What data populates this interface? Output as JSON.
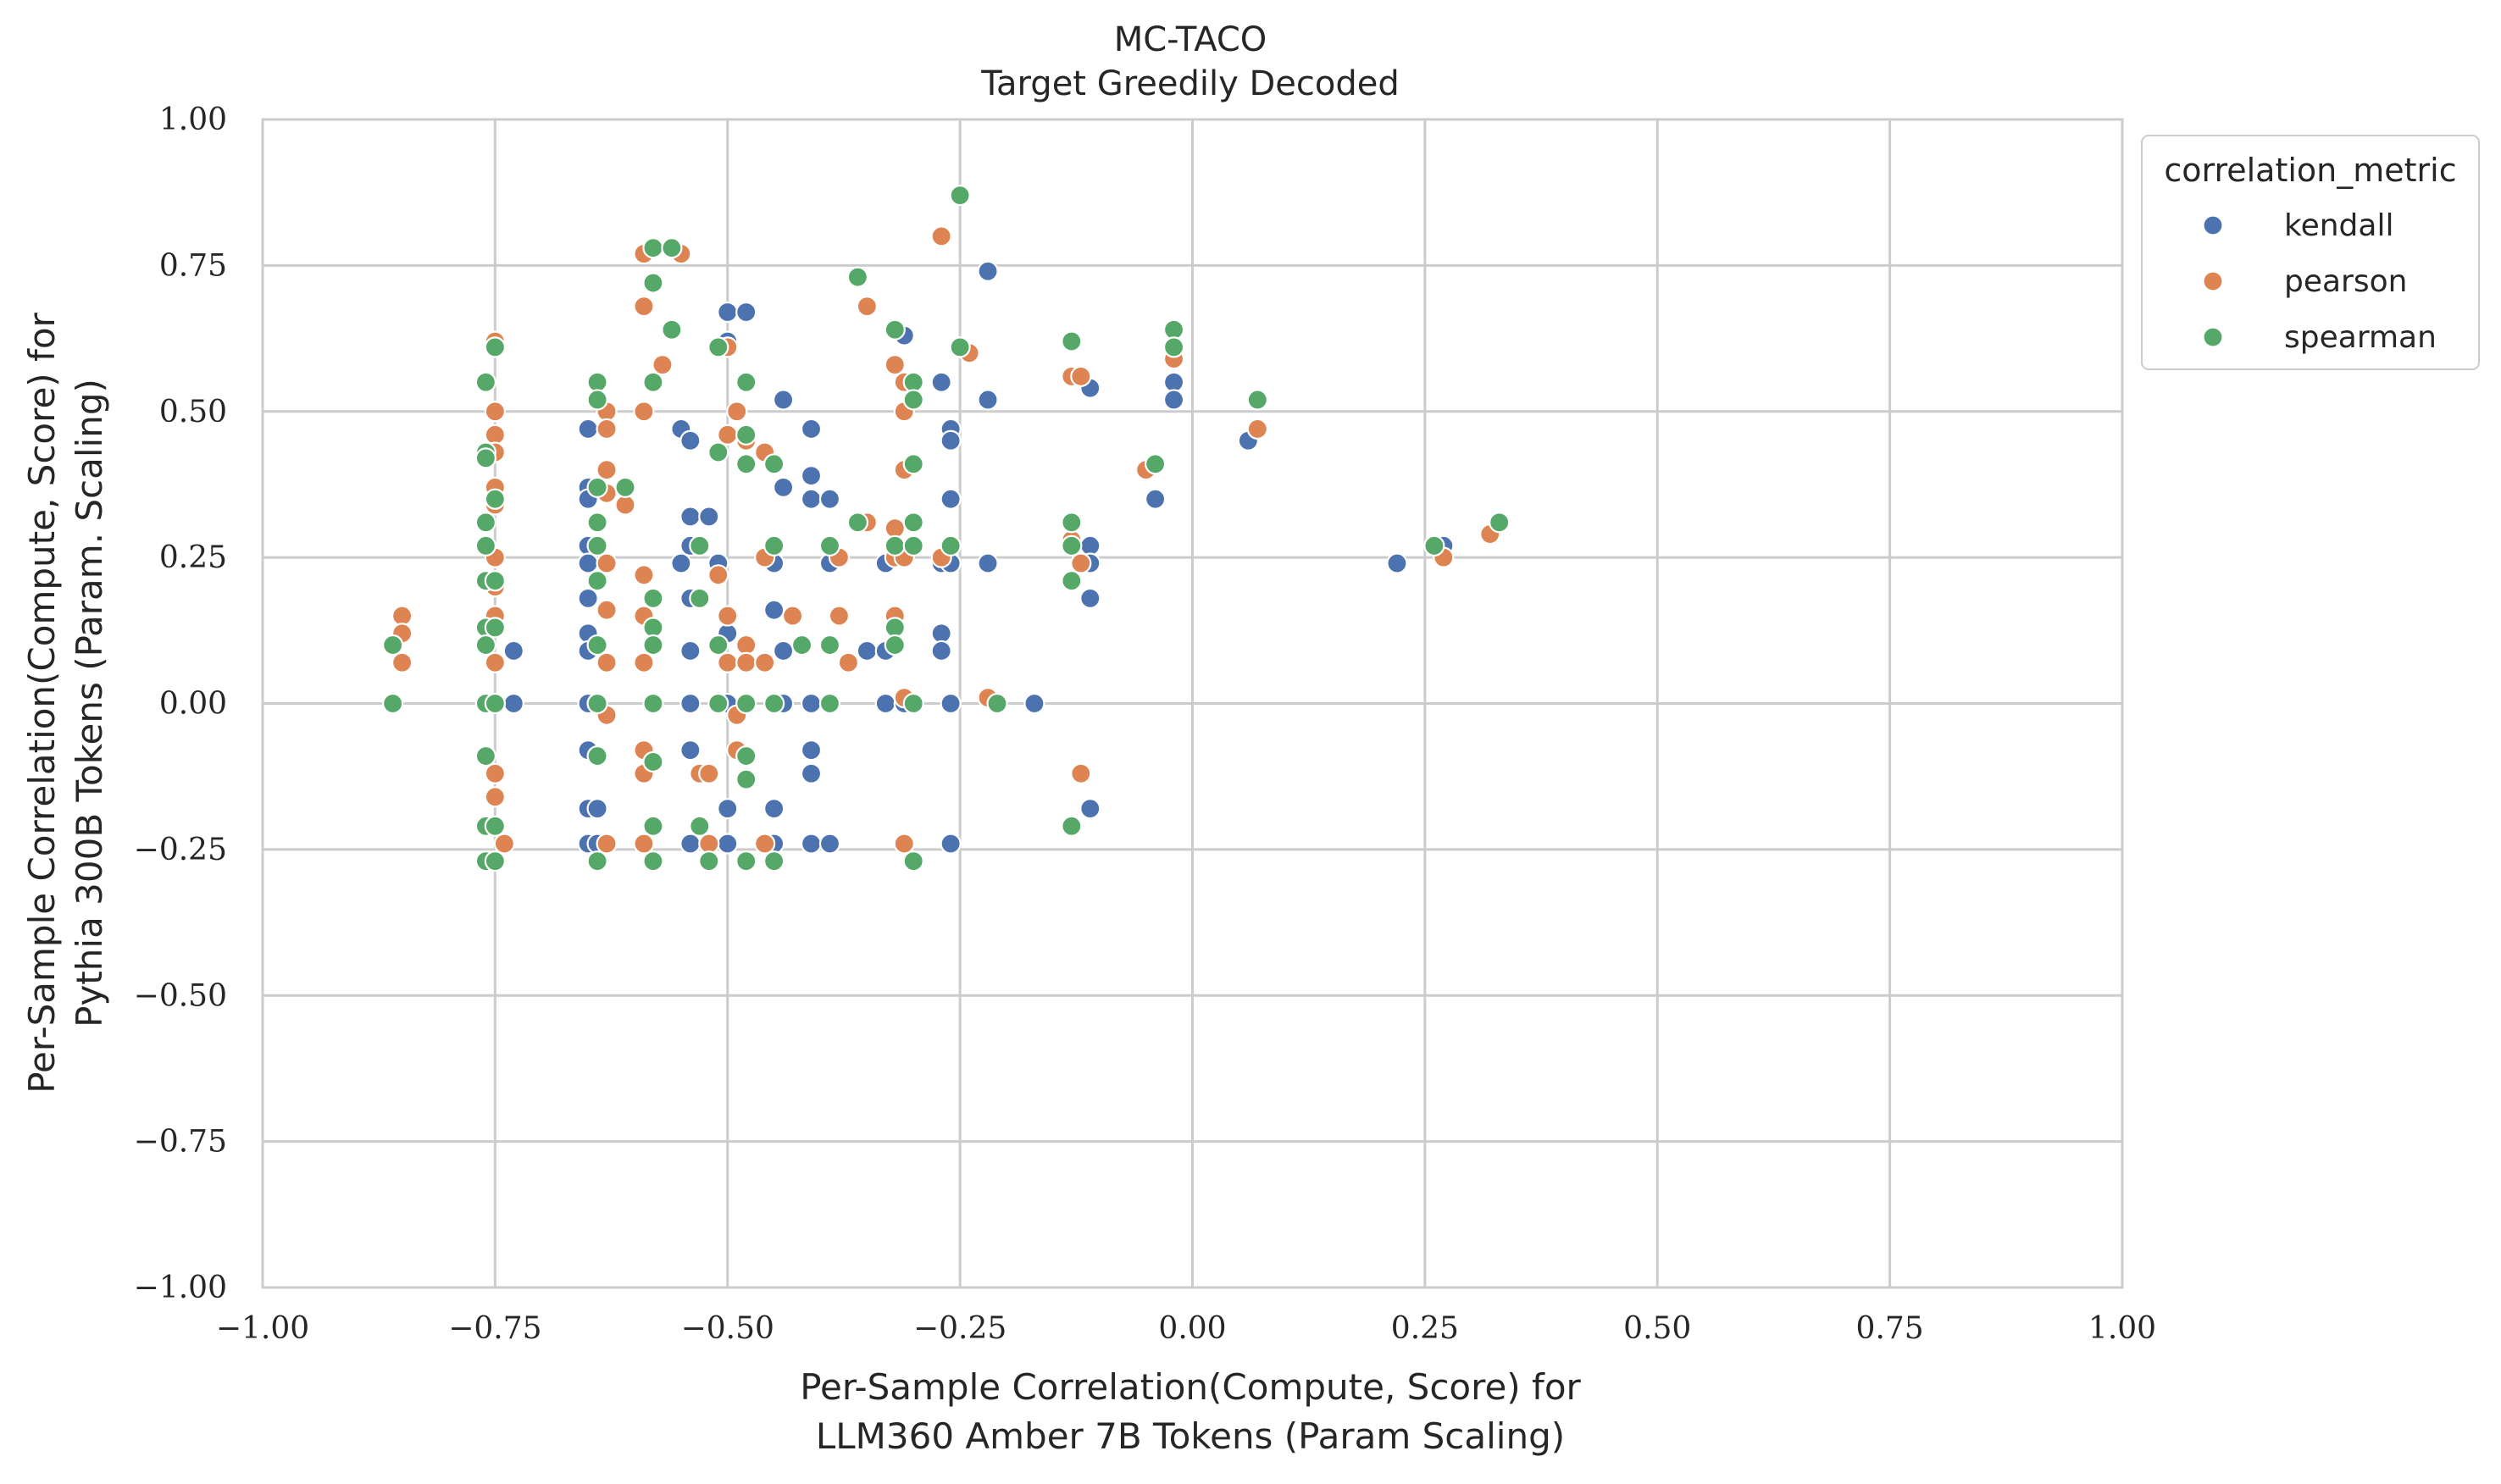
{
  "chart_data": {
    "type": "scatter",
    "title": "MC-TACO",
    "subtitle": "Target Greedily Decoded",
    "xlabel_lines": [
      "Per-Sample Correlation(Compute, Score) for",
      "LLM360 Amber 7B Tokens (Param Scaling)"
    ],
    "ylabel_lines": [
      "Per-Sample Correlation(Compute, Score) for",
      "Pythia 300B Tokens (Param. Scaling)"
    ],
    "xlim": [
      -1.0,
      1.0
    ],
    "ylim": [
      -1.0,
      1.0
    ],
    "xticks": [
      -1.0,
      -0.75,
      -0.5,
      -0.25,
      0.0,
      0.25,
      0.5,
      0.75,
      1.0
    ],
    "yticks": [
      -1.0,
      -0.75,
      -0.5,
      -0.25,
      0.0,
      0.25,
      0.5,
      0.75,
      1.0
    ],
    "xtick_labels": [
      "−1.00",
      "−0.75",
      "−0.50",
      "−0.25",
      "0.00",
      "0.25",
      "0.50",
      "0.75",
      "1.00"
    ],
    "ytick_labels": [
      "−1.00",
      "−0.75",
      "−0.50",
      "−0.25",
      "0.00",
      "0.25",
      "0.50",
      "0.75",
      "1.00"
    ],
    "grid": true,
    "legend": {
      "title": "correlation_metric",
      "placement": "outside-top-right"
    },
    "series": [
      {
        "name": "kendall",
        "color": "#4c72b0",
        "points": [
          [
            -0.73,
            0.09
          ],
          [
            -0.73,
            0.0
          ],
          [
            -0.65,
            0.47
          ],
          [
            -0.65,
            0.37
          ],
          [
            -0.65,
            0.35
          ],
          [
            -0.65,
            0.27
          ],
          [
            -0.65,
            0.24
          ],
          [
            -0.65,
            0.18
          ],
          [
            -0.65,
            0.12
          ],
          [
            -0.65,
            0.09
          ],
          [
            -0.65,
            0.0
          ],
          [
            -0.65,
            -0.08
          ],
          [
            -0.65,
            -0.18
          ],
          [
            -0.65,
            -0.24
          ],
          [
            -0.64,
            -0.18
          ],
          [
            -0.64,
            -0.24
          ],
          [
            -0.64,
            0.0
          ],
          [
            -0.55,
            0.47
          ],
          [
            -0.54,
            0.45
          ],
          [
            -0.54,
            0.32
          ],
          [
            -0.54,
            0.27
          ],
          [
            -0.55,
            0.24
          ],
          [
            -0.54,
            0.18
          ],
          [
            -0.54,
            0.09
          ],
          [
            -0.54,
            0.0
          ],
          [
            -0.54,
            -0.08
          ],
          [
            -0.54,
            -0.24
          ],
          [
            -0.52,
            0.32
          ],
          [
            -0.51,
            0.24
          ],
          [
            -0.5,
            0.67
          ],
          [
            -0.5,
            0.62
          ],
          [
            -0.48,
            0.67
          ],
          [
            -0.5,
            0.12
          ],
          [
            -0.5,
            0.0
          ],
          [
            -0.5,
            -0.18
          ],
          [
            -0.5,
            -0.24
          ],
          [
            -0.45,
            0.24
          ],
          [
            -0.45,
            0.16
          ],
          [
            -0.45,
            -0.18
          ],
          [
            -0.45,
            -0.24
          ],
          [
            -0.45,
            0.0
          ],
          [
            -0.44,
            0.52
          ],
          [
            -0.44,
            0.37
          ],
          [
            -0.44,
            0.09
          ],
          [
            -0.44,
            0.0
          ],
          [
            -0.41,
            0.47
          ],
          [
            -0.41,
            0.39
          ],
          [
            -0.41,
            0.35
          ],
          [
            -0.41,
            0.0
          ],
          [
            -0.41,
            -0.08
          ],
          [
            -0.41,
            -0.12
          ],
          [
            -0.41,
            -0.24
          ],
          [
            -0.39,
            0.35
          ],
          [
            -0.39,
            0.24
          ],
          [
            -0.39,
            0.0
          ],
          [
            -0.39,
            -0.24
          ],
          [
            -0.35,
            0.09
          ],
          [
            -0.33,
            0.09
          ],
          [
            -0.33,
            0.24
          ],
          [
            -0.33,
            0.0
          ],
          [
            -0.31,
            0.63
          ],
          [
            -0.31,
            0.0
          ],
          [
            -0.27,
            0.55
          ],
          [
            -0.27,
            0.24
          ],
          [
            -0.27,
            0.12
          ],
          [
            -0.27,
            0.09
          ],
          [
            -0.26,
            0.47
          ],
          [
            -0.26,
            0.45
          ],
          [
            -0.26,
            0.35
          ],
          [
            -0.26,
            0.24
          ],
          [
            -0.26,
            0.0
          ],
          [
            -0.26,
            -0.24
          ],
          [
            -0.22,
            0.74
          ],
          [
            -0.22,
            0.52
          ],
          [
            -0.22,
            0.24
          ],
          [
            -0.17,
            0.0
          ],
          [
            -0.11,
            0.54
          ],
          [
            -0.11,
            0.27
          ],
          [
            -0.11,
            0.24
          ],
          [
            -0.11,
            0.18
          ],
          [
            -0.11,
            -0.18
          ],
          [
            -0.02,
            0.55
          ],
          [
            -0.02,
            0.52
          ],
          [
            -0.04,
            0.35
          ],
          [
            0.06,
            0.45
          ],
          [
            0.22,
            0.24
          ],
          [
            0.27,
            0.27
          ]
        ]
      },
      {
        "name": "pearson",
        "color": "#dd8452",
        "points": [
          [
            -0.85,
            0.15
          ],
          [
            -0.85,
            0.12
          ],
          [
            -0.85,
            0.07
          ],
          [
            -0.75,
            0.62
          ],
          [
            -0.75,
            0.5
          ],
          [
            -0.75,
            0.46
          ],
          [
            -0.75,
            0.43
          ],
          [
            -0.75,
            0.37
          ],
          [
            -0.75,
            0.34
          ],
          [
            -0.75,
            0.25
          ],
          [
            -0.75,
            0.2
          ],
          [
            -0.75,
            0.15
          ],
          [
            -0.75,
            0.07
          ],
          [
            -0.75,
            0.0
          ],
          [
            -0.75,
            -0.12
          ],
          [
            -0.75,
            -0.16
          ],
          [
            -0.74,
            -0.24
          ],
          [
            -0.63,
            0.5
          ],
          [
            -0.63,
            0.47
          ],
          [
            -0.63,
            0.4
          ],
          [
            -0.63,
            0.36
          ],
          [
            -0.63,
            0.24
          ],
          [
            -0.63,
            0.16
          ],
          [
            -0.63,
            0.07
          ],
          [
            -0.63,
            -0.02
          ],
          [
            -0.63,
            -0.24
          ],
          [
            -0.61,
            0.34
          ],
          [
            -0.59,
            0.77
          ],
          [
            -0.59,
            0.68
          ],
          [
            -0.59,
            0.5
          ],
          [
            -0.59,
            0.22
          ],
          [
            -0.59,
            0.15
          ],
          [
            -0.59,
            0.07
          ],
          [
            -0.59,
            -0.08
          ],
          [
            -0.59,
            -0.12
          ],
          [
            -0.59,
            -0.24
          ],
          [
            -0.57,
            0.58
          ],
          [
            -0.55,
            0.77
          ],
          [
            -0.53,
            -0.12
          ],
          [
            -0.52,
            -0.12
          ],
          [
            -0.52,
            -0.24
          ],
          [
            -0.51,
            0.22
          ],
          [
            -0.5,
            0.61
          ],
          [
            -0.5,
            0.46
          ],
          [
            -0.5,
            0.15
          ],
          [
            -0.5,
            0.07
          ],
          [
            -0.49,
            0.5
          ],
          [
            -0.49,
            -0.02
          ],
          [
            -0.49,
            -0.08
          ],
          [
            -0.48,
            0.45
          ],
          [
            -0.48,
            0.1
          ],
          [
            -0.48,
            0.07
          ],
          [
            -0.46,
            0.43
          ],
          [
            -0.46,
            0.25
          ],
          [
            -0.46,
            0.07
          ],
          [
            -0.46,
            -0.24
          ],
          [
            -0.43,
            0.15
          ],
          [
            -0.38,
            0.25
          ],
          [
            -0.38,
            0.15
          ],
          [
            -0.37,
            0.07
          ],
          [
            -0.35,
            0.68
          ],
          [
            -0.35,
            0.31
          ],
          [
            -0.32,
            0.58
          ],
          [
            -0.32,
            0.3
          ],
          [
            -0.32,
            0.25
          ],
          [
            -0.32,
            0.15
          ],
          [
            -0.31,
            0.55
          ],
          [
            -0.31,
            0.5
          ],
          [
            -0.31,
            0.4
          ],
          [
            -0.31,
            0.25
          ],
          [
            -0.31,
            0.01
          ],
          [
            -0.31,
            -0.24
          ],
          [
            -0.27,
            0.8
          ],
          [
            -0.27,
            0.25
          ],
          [
            -0.24,
            0.6
          ],
          [
            -0.22,
            0.01
          ],
          [
            -0.13,
            0.56
          ],
          [
            -0.12,
            0.56
          ],
          [
            -0.13,
            0.28
          ],
          [
            -0.12,
            0.24
          ],
          [
            -0.12,
            -0.12
          ],
          [
            -0.05,
            0.4
          ],
          [
            -0.02,
            0.59
          ],
          [
            0.07,
            0.47
          ],
          [
            0.27,
            0.25
          ],
          [
            0.32,
            0.29
          ]
        ]
      },
      {
        "name": "spearman",
        "color": "#55a868",
        "points": [
          [
            -0.86,
            0.1
          ],
          [
            -0.86,
            0.0
          ],
          [
            -0.76,
            0.55
          ],
          [
            -0.76,
            0.43
          ],
          [
            -0.76,
            0.42
          ],
          [
            -0.76,
            0.31
          ],
          [
            -0.76,
            0.27
          ],
          [
            -0.76,
            0.21
          ],
          [
            -0.76,
            0.13
          ],
          [
            -0.76,
            0.1
          ],
          [
            -0.76,
            0.0
          ],
          [
            -0.76,
            -0.09
          ],
          [
            -0.76,
            -0.21
          ],
          [
            -0.76,
            -0.27
          ],
          [
            -0.75,
            0.61
          ],
          [
            -0.75,
            0.35
          ],
          [
            -0.75,
            0.21
          ],
          [
            -0.75,
            0.13
          ],
          [
            -0.75,
            0.0
          ],
          [
            -0.75,
            -0.21
          ],
          [
            -0.75,
            -0.27
          ],
          [
            -0.64,
            0.55
          ],
          [
            -0.64,
            0.52
          ],
          [
            -0.64,
            0.37
          ],
          [
            -0.64,
            0.31
          ],
          [
            -0.64,
            0.27
          ],
          [
            -0.64,
            0.21
          ],
          [
            -0.64,
            0.1
          ],
          [
            -0.64,
            0.0
          ],
          [
            -0.64,
            -0.09
          ],
          [
            -0.64,
            -0.27
          ],
          [
            -0.61,
            0.37
          ],
          [
            -0.58,
            0.78
          ],
          [
            -0.58,
            0.72
          ],
          [
            -0.58,
            0.55
          ],
          [
            -0.58,
            0.18
          ],
          [
            -0.58,
            0.13
          ],
          [
            -0.58,
            0.1
          ],
          [
            -0.58,
            0.0
          ],
          [
            -0.58,
            -0.1
          ],
          [
            -0.58,
            -0.21
          ],
          [
            -0.58,
            -0.27
          ],
          [
            -0.56,
            0.78
          ],
          [
            -0.56,
            0.64
          ],
          [
            -0.53,
            0.27
          ],
          [
            -0.53,
            0.18
          ],
          [
            -0.53,
            -0.21
          ],
          [
            -0.52,
            -0.27
          ],
          [
            -0.51,
            0.61
          ],
          [
            -0.51,
            0.43
          ],
          [
            -0.51,
            0.1
          ],
          [
            -0.51,
            0.0
          ],
          [
            -0.48,
            0.55
          ],
          [
            -0.48,
            0.46
          ],
          [
            -0.48,
            0.41
          ],
          [
            -0.48,
            0.0
          ],
          [
            -0.48,
            -0.09
          ],
          [
            -0.48,
            -0.13
          ],
          [
            -0.48,
            -0.27
          ],
          [
            -0.45,
            0.41
          ],
          [
            -0.45,
            0.27
          ],
          [
            -0.45,
            0.0
          ],
          [
            -0.45,
            -0.27
          ],
          [
            -0.42,
            0.1
          ],
          [
            -0.39,
            0.27
          ],
          [
            -0.39,
            0.1
          ],
          [
            -0.39,
            0.0
          ],
          [
            -0.36,
            0.73
          ],
          [
            -0.36,
            0.31
          ],
          [
            -0.32,
            0.64
          ],
          [
            -0.32,
            0.27
          ],
          [
            -0.32,
            0.13
          ],
          [
            -0.32,
            0.1
          ],
          [
            -0.3,
            0.55
          ],
          [
            -0.3,
            0.52
          ],
          [
            -0.3,
            0.41
          ],
          [
            -0.3,
            0.31
          ],
          [
            -0.3,
            0.27
          ],
          [
            -0.3,
            0.0
          ],
          [
            -0.3,
            -0.27
          ],
          [
            -0.25,
            0.87
          ],
          [
            -0.25,
            0.61
          ],
          [
            -0.26,
            0.27
          ],
          [
            -0.21,
            0.0
          ],
          [
            -0.13,
            0.62
          ],
          [
            -0.13,
            0.31
          ],
          [
            -0.13,
            0.27
          ],
          [
            -0.13,
            0.21
          ],
          [
            -0.13,
            -0.21
          ],
          [
            -0.02,
            0.64
          ],
          [
            -0.02,
            0.61
          ],
          [
            -0.04,
            0.41
          ],
          [
            0.07,
            0.52
          ],
          [
            0.26,
            0.27
          ],
          [
            0.33,
            0.31
          ]
        ]
      }
    ]
  }
}
